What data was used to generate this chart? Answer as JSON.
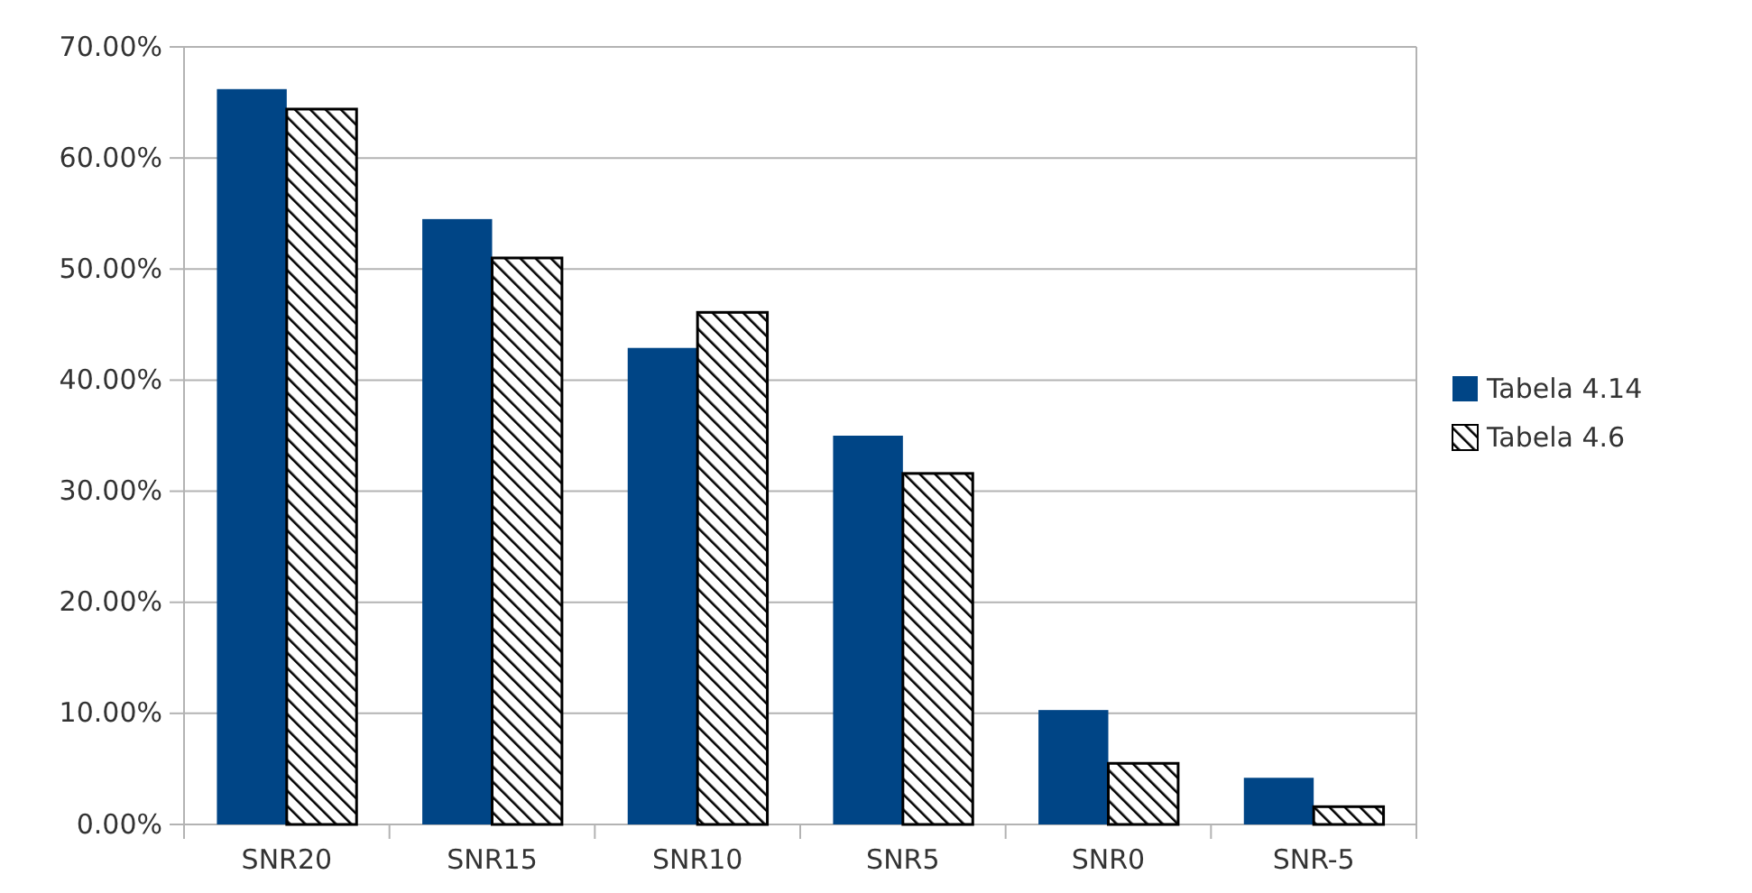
{
  "chart_data": {
    "type": "bar",
    "categories": [
      "SNR20",
      "SNR15",
      "SNR10",
      "SNR5",
      "SNR0",
      "SNR-5"
    ],
    "series": [
      {
        "name": "Tabela 4.14",
        "color": "#004586",
        "values": [
          66.2,
          54.5,
          42.9,
          35.0,
          10.3,
          4.2
        ]
      },
      {
        "name": "Tabela 4.6",
        "color": "#000000",
        "values": [
          64.4,
          51.0,
          46.1,
          31.6,
          5.5,
          1.6
        ]
      }
    ],
    "ylim": [
      0,
      70
    ],
    "yticks": [
      {
        "value": 0,
        "label": "0.00%"
      },
      {
        "value": 10,
        "label": "10.00%"
      },
      {
        "value": 20,
        "label": "20.00%"
      },
      {
        "value": 30,
        "label": "30.00%"
      },
      {
        "value": 40,
        "label": "40.00%"
      },
      {
        "value": 50,
        "label": "50.00%"
      },
      {
        "value": 60,
        "label": "60.00%"
      },
      {
        "value": 70,
        "label": "70.00%"
      }
    ],
    "grid": "y",
    "legend": "right"
  }
}
